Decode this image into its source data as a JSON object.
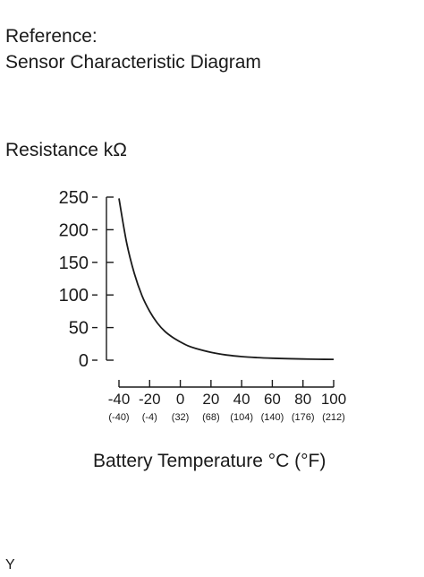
{
  "reference": {
    "line1": "Reference:",
    "line2": "Sensor Characteristic Diagram"
  },
  "footer_text": "Y",
  "chart_data": {
    "type": "line",
    "title": "",
    "ylabel": "Resistance kΩ",
    "xlabel": "Battery Temperature °C (°F)",
    "xlim": [
      -40,
      100
    ],
    "ylim": [
      0,
      250
    ],
    "x_ticks": [
      -40,
      -20,
      0,
      20,
      40,
      60,
      80,
      100
    ],
    "x_tick_labels": [
      "-40",
      "-20",
      "0",
      "20",
      "40",
      "60",
      "80",
      "100"
    ],
    "x_tick_sublabels": [
      "(-40)",
      "(-4)",
      "(32)",
      "(68)",
      "(104)",
      "(140)",
      "(176)",
      "(212)"
    ],
    "y_ticks": [
      0,
      50,
      100,
      150,
      200,
      250
    ],
    "y_tick_labels": [
      "0",
      "50",
      "100",
      "150",
      "200",
      "250"
    ],
    "grid": false,
    "series": [
      {
        "x": [
          -40,
          -35,
          -30,
          -25,
          -20,
          -15,
          -10,
          -5,
          0,
          5,
          10,
          20,
          30,
          40,
          50,
          60,
          70,
          80,
          90,
          100
        ],
        "y": [
          248,
          180,
          133,
          99,
          75,
          57,
          44,
          35,
          28,
          22,
          18,
          12,
          8,
          5.5,
          4,
          3,
          2.3,
          1.8,
          1.4,
          1.2
        ],
        "color": "#1a1a1a"
      }
    ]
  }
}
